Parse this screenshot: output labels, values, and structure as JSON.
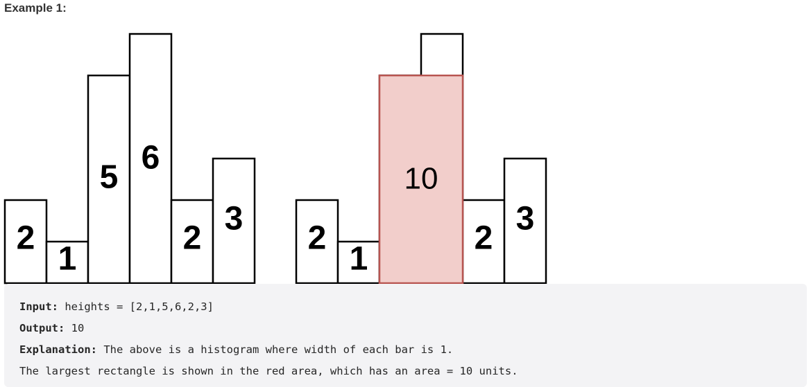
{
  "heading": "Example 1:",
  "chart_data": [
    {
      "type": "bar",
      "values": [
        2,
        1,
        5,
        6,
        2,
        3
      ],
      "labels": [
        "2",
        "1",
        "5",
        "6",
        "2",
        "3"
      ],
      "ylim": [
        0,
        6
      ]
    },
    {
      "type": "bar",
      "values": [
        2,
        1,
        5,
        6,
        2,
        3
      ],
      "labels": [
        "2",
        "1",
        "",
        "",
        "2",
        "3"
      ],
      "highlight": {
        "start_index": 2,
        "end_index": 3,
        "height": 5,
        "label": "10",
        "fill": "#f2cecb",
        "stroke": "#b85450"
      },
      "ylim": [
        0,
        6
      ]
    }
  ],
  "example": {
    "input_label": "Input:",
    "input_value": " heights = [2,1,5,6,2,3]",
    "output_label": "Output:",
    "output_value": " 10",
    "explanation_label": "Explanation:",
    "explanation_value": " The above is a histogram where width of each bar is 1.",
    "explanation_line2": "The largest rectangle is shown in the red area, which has an area = 10 units."
  }
}
